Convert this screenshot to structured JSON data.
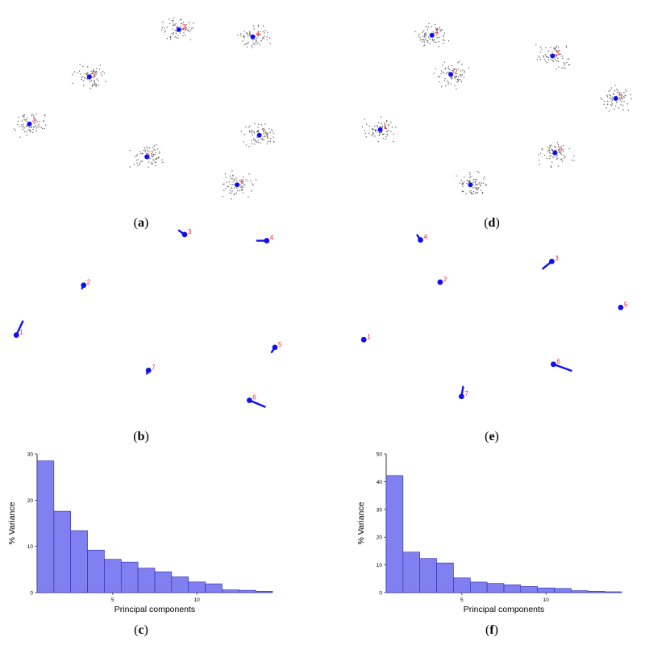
{
  "colors": {
    "point": "#1010ee",
    "label": "#ff2222",
    "scatter": "#555555",
    "bar_fill": "#8080f0",
    "bar_stroke": "#2a2ab0"
  },
  "captions": {
    "a": "a",
    "b": "b",
    "c": "c",
    "d": "d",
    "e": "e",
    "f": "f"
  },
  "chart_data": [
    {
      "type": "scatter",
      "panel": "a",
      "title": "",
      "xlabel": "",
      "ylabel": "",
      "xlim": [
        0,
        330
      ],
      "ylim": [
        0,
        250
      ],
      "points": [
        {
          "label": "1",
          "x": 30,
          "y": 101
        },
        {
          "label": "2",
          "x": 103,
          "y": 160
        },
        {
          "label": "3",
          "x": 212,
          "y": 219
        },
        {
          "label": "4",
          "x": 302,
          "y": 210
        },
        {
          "label": "5",
          "x": 310,
          "y": 87
        },
        {
          "label": "6",
          "x": 283,
          "y": 25
        },
        {
          "label": "7",
          "x": 173,
          "y": 60
        }
      ]
    },
    {
      "type": "vector",
      "panel": "b",
      "title": "",
      "xlabel": "",
      "ylabel": "",
      "xlim": [
        0,
        330
      ],
      "ylim": [
        0,
        250
      ],
      "points": [
        {
          "label": "1",
          "x": 14,
          "y": 117,
          "dx": 8,
          "dy": 17
        },
        {
          "label": "2",
          "x": 96,
          "y": 182,
          "dx": -2,
          "dy": -4
        },
        {
          "label": "3",
          "x": 219,
          "y": 248,
          "dx": -7,
          "dy": 5
        },
        {
          "label": "4",
          "x": 319,
          "y": 240,
          "dx": -12,
          "dy": 0
        },
        {
          "label": "5",
          "x": 329,
          "y": 101,
          "dx": -4,
          "dy": -6
        },
        {
          "label": "6",
          "x": 298,
          "y": 32,
          "dx": 19,
          "dy": -8
        },
        {
          "label": "7",
          "x": 175,
          "y": 71,
          "dx": -2,
          "dy": -4
        }
      ]
    },
    {
      "type": "bar",
      "panel": "c",
      "title": "",
      "xlabel": "Principal components",
      "ylabel": "% Variance",
      "categories": [
        1,
        2,
        3,
        4,
        5,
        6,
        7,
        8,
        9,
        10,
        11,
        12,
        13,
        14
      ],
      "values": [
        28.5,
        17.6,
        13.4,
        9.2,
        7.2,
        6.6,
        5.3,
        4.5,
        3.4,
        2.3,
        1.9,
        0.6,
        0.5,
        0.3
      ],
      "xticks": [
        5,
        10
      ],
      "ylim": [
        0,
        30
      ],
      "yticks": [
        0,
        10,
        20,
        30
      ]
    },
    {
      "type": "scatter",
      "panel": "d",
      "title": "",
      "xlabel": "",
      "ylabel": "",
      "xlim": [
        0,
        330
      ],
      "ylim": [
        0,
        250
      ],
      "points": [
        {
          "label": "1",
          "x": 32,
          "y": 94
        },
        {
          "label": "2",
          "x": 118,
          "y": 163
        },
        {
          "label": "3",
          "x": 242,
          "y": 186
        },
        {
          "label": "4",
          "x": 95,
          "y": 212
        },
        {
          "label": "5",
          "x": 319,
          "y": 133
        },
        {
          "label": "6",
          "x": 245,
          "y": 65
        },
        {
          "label": "7",
          "x": 142,
          "y": 25
        }
      ]
    },
    {
      "type": "vector",
      "panel": "e",
      "title": "",
      "xlabel": "",
      "ylabel": "",
      "xlim": [
        0,
        330
      ],
      "ylim": [
        0,
        250
      ],
      "points": [
        {
          "label": "1",
          "x": 12,
          "y": 111,
          "dx": -1,
          "dy": 2
        },
        {
          "label": "2",
          "x": 105,
          "y": 186,
          "dx": -2,
          "dy": -1
        },
        {
          "label": "3",
          "x": 241,
          "y": 213,
          "dx": -11,
          "dy": -9
        },
        {
          "label": "4",
          "x": 81,
          "y": 241,
          "dx": -4,
          "dy": 6
        },
        {
          "label": "5",
          "x": 325,
          "y": 153,
          "dx": 0,
          "dy": 0
        },
        {
          "label": "6",
          "x": 243,
          "y": 79,
          "dx": 22,
          "dy": -8
        },
        {
          "label": "7",
          "x": 131,
          "y": 37,
          "dx": 2,
          "dy": 12
        }
      ]
    },
    {
      "type": "bar",
      "panel": "f",
      "title": "",
      "xlabel": "Principal components",
      "ylabel": "% Variance",
      "categories": [
        1,
        2,
        3,
        4,
        5,
        6,
        7,
        8,
        9,
        10,
        11,
        12,
        13,
        14
      ],
      "values": [
        42.2,
        14.6,
        12.3,
        10.7,
        5.3,
        3.8,
        3.3,
        2.8,
        2.2,
        1.7,
        1.5,
        0.7,
        0.5,
        0.3
      ],
      "xticks": [
        5,
        10
      ],
      "ylim": [
        0,
        50
      ],
      "yticks": [
        0,
        10,
        20,
        30,
        40,
        50
      ]
    }
  ]
}
